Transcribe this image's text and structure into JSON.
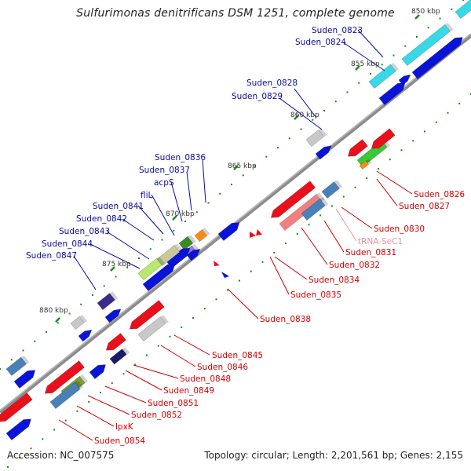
{
  "title": "Sulfurimonas denitrificans DSM 1251, complete genome",
  "footer": {
    "accession": "Accession: NC_007575",
    "summary": "Topology: circular; Length: 2,201,561 bp; Genes: 2,155"
  },
  "colors": {
    "blue_gene": "#0a14d8",
    "red_gene": "#e8101a",
    "label_blue": "#0a0aa0",
    "label_red": "#d00000",
    "label_pink": "#f090a0",
    "axis": "#7a7a7a",
    "tick": "#1a8a1a"
  },
  "ruler_labels": [
    "850 kbp",
    "855 kbp",
    "860 kbp",
    "865 kbp",
    "870 kbp",
    "875 kbp",
    "880 kbp"
  ],
  "labels_top": [
    "Suden_0823",
    "Suden_0824",
    "Suden_0828",
    "Suden_0829",
    "Suden_0836",
    "Suden_0837",
    "acpS",
    "fliL",
    "Suden_0841",
    "Suden_0842",
    "Suden_0843",
    "Suden_0844",
    "Suden_0847"
  ],
  "labels_bottom": [
    "Suden_0826",
    "Suden_0827",
    "Suden_0830",
    "tRNA-SeC1",
    "Suden_0831",
    "Suden_0832",
    "Suden_0834",
    "Suden_0835",
    "Suden_0838",
    "Suden_0845",
    "Suden_0846",
    "Suden_0848",
    "Suden_0849",
    "Suden_0851",
    "Suden_0852",
    "lpxK",
    "Suden_0854"
  ]
}
